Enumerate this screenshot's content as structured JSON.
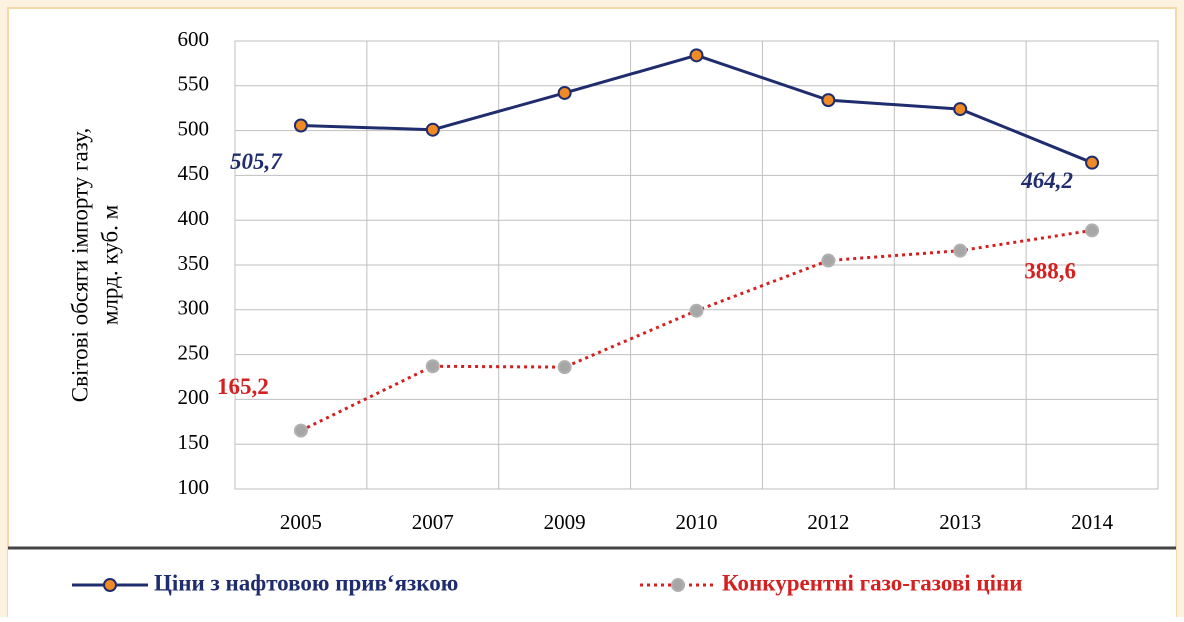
{
  "chart_data": {
    "type": "line",
    "ylabel": [
      "Світові обсяги імпорту газу,",
      "млрд. куб. м"
    ],
    "categories": [
      "2005",
      "2007",
      "2009",
      "2010",
      "2012",
      "2013",
      "2014"
    ],
    "series": [
      {
        "name": "Ціни з нафтовою прив‘язкою",
        "color": "#1f2d6e",
        "marker_color": "#f08a24",
        "line_style": "solid",
        "values": [
          505.7,
          501,
          542,
          584,
          534,
          524,
          464.2
        ],
        "value_labels": [
          "505,7",
          null,
          null,
          null,
          null,
          null,
          "464,2"
        ]
      },
      {
        "name": "Конкурентні газо-газові ціни",
        "color": "#d42020",
        "marker_color": "#a6a6a6",
        "line_style": "dotted",
        "values": [
          165.2,
          237,
          236,
          299,
          355,
          366,
          388.6
        ],
        "value_labels": [
          "165,2",
          null,
          null,
          null,
          null,
          null,
          "388,6"
        ]
      }
    ],
    "ylim": [
      100,
      600
    ],
    "yticks": [
      100,
      150,
      200,
      250,
      300,
      350,
      400,
      450,
      500,
      550,
      600
    ],
    "grid": true,
    "legend": "bottom"
  }
}
